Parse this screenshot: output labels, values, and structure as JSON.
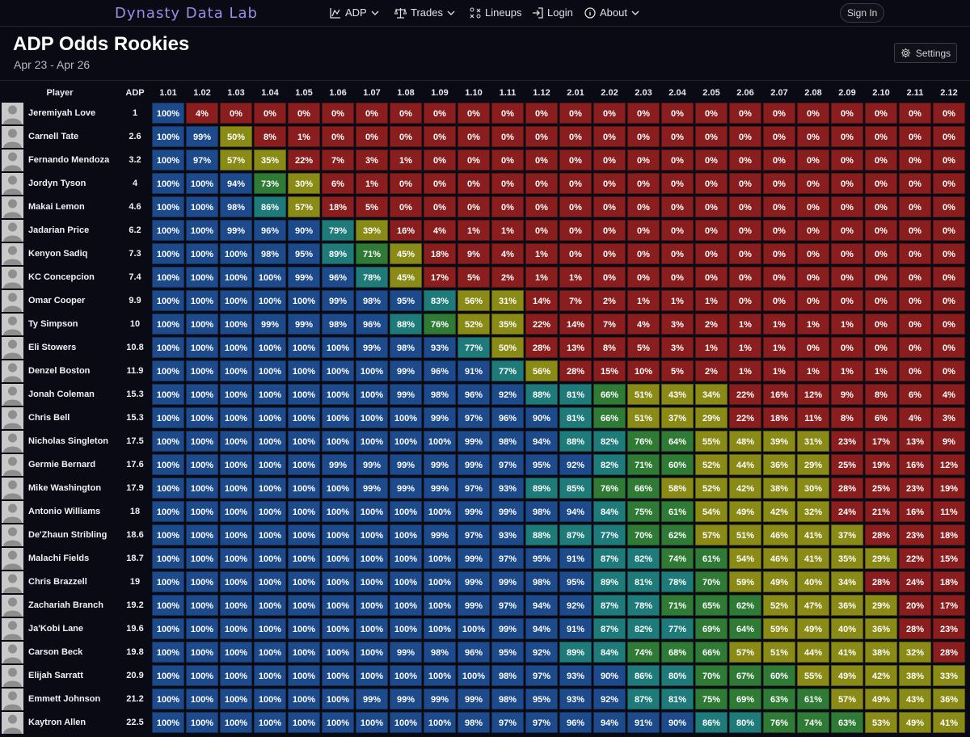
{
  "nav": {
    "brand": "Dynasty Data Lab",
    "items": [
      {
        "label": "ADP",
        "icon": "chart-icon",
        "dropdown": true
      },
      {
        "label": "Trades",
        "icon": "scale-icon",
        "dropdown": true
      },
      {
        "label": "Lineups",
        "icon": "lineup-icon",
        "dropdown": false
      },
      {
        "label": "Login",
        "icon": "login-icon",
        "dropdown": false
      },
      {
        "label": "About",
        "icon": "info-icon",
        "dropdown": true
      }
    ],
    "signin_label": "Sign In"
  },
  "page": {
    "title": "ADP Odds Rookies",
    "subtitle": "Apr 23 - Apr 26",
    "settings_label": "Settings"
  },
  "table": {
    "player_header": "Player",
    "adp_header": "ADP",
    "picks": [
      "1.01",
      "1.02",
      "1.03",
      "1.04",
      "1.05",
      "1.06",
      "1.07",
      "1.08",
      "1.09",
      "1.10",
      "1.11",
      "1.12",
      "2.01",
      "2.02",
      "2.03",
      "2.04",
      "2.05",
      "2.06",
      "2.07",
      "2.08",
      "2.09",
      "2.10",
      "2.11",
      "2.12"
    ],
    "rows": [
      {
        "name": "Jeremiyah Love",
        "adp": "1",
        "odds": [
          100,
          4,
          0,
          0,
          0,
          0,
          0,
          0,
          0,
          0,
          0,
          0,
          0,
          0,
          0,
          0,
          0,
          0,
          0,
          0,
          0,
          0,
          0,
          0
        ]
      },
      {
        "name": "Carnell Tate",
        "adp": "2.6",
        "odds": [
          100,
          99,
          50,
          8,
          1,
          0,
          0,
          0,
          0,
          0,
          0,
          0,
          0,
          0,
          0,
          0,
          0,
          0,
          0,
          0,
          0,
          0,
          0,
          0
        ]
      },
      {
        "name": "Fernando Mendoza",
        "adp": "3.2",
        "odds": [
          100,
          97,
          57,
          35,
          22,
          7,
          3,
          1,
          0,
          0,
          0,
          0,
          0,
          0,
          0,
          0,
          0,
          0,
          0,
          0,
          0,
          0,
          0,
          0
        ]
      },
      {
        "name": "Jordyn Tyson",
        "adp": "4",
        "odds": [
          100,
          100,
          94,
          73,
          30,
          6,
          1,
          0,
          0,
          0,
          0,
          0,
          0,
          0,
          0,
          0,
          0,
          0,
          0,
          0,
          0,
          0,
          0,
          0
        ]
      },
      {
        "name": "Makai Lemon",
        "adp": "4.6",
        "odds": [
          100,
          100,
          98,
          86,
          57,
          18,
          5,
          0,
          0,
          0,
          0,
          0,
          0,
          0,
          0,
          0,
          0,
          0,
          0,
          0,
          0,
          0,
          0,
          0
        ]
      },
      {
        "name": "Jadarian Price",
        "adp": "6.2",
        "odds": [
          100,
          100,
          99,
          96,
          90,
          79,
          39,
          16,
          4,
          1,
          1,
          0,
          0,
          0,
          0,
          0,
          0,
          0,
          0,
          0,
          0,
          0,
          0,
          0
        ]
      },
      {
        "name": "Kenyon Sadiq",
        "adp": "7.3",
        "odds": [
          100,
          100,
          100,
          98,
          95,
          89,
          71,
          45,
          18,
          9,
          4,
          1,
          0,
          0,
          0,
          0,
          0,
          0,
          0,
          0,
          0,
          0,
          0,
          0
        ]
      },
      {
        "name": "KC Concepcion",
        "adp": "7.4",
        "odds": [
          100,
          100,
          100,
          100,
          99,
          96,
          78,
          45,
          17,
          5,
          2,
          1,
          1,
          0,
          0,
          0,
          0,
          0,
          0,
          0,
          0,
          0,
          0,
          0
        ]
      },
      {
        "name": "Omar Cooper",
        "adp": "9.9",
        "odds": [
          100,
          100,
          100,
          100,
          100,
          99,
          98,
          95,
          83,
          56,
          31,
          14,
          7,
          2,
          1,
          1,
          1,
          0,
          0,
          0,
          0,
          0,
          0,
          0
        ]
      },
      {
        "name": "Ty Simpson",
        "adp": "10",
        "odds": [
          100,
          100,
          100,
          99,
          99,
          98,
          96,
          88,
          76,
          52,
          35,
          22,
          14,
          7,
          4,
          3,
          2,
          1,
          1,
          1,
          1,
          0,
          0,
          0
        ]
      },
      {
        "name": "Eli Stowers",
        "adp": "10.8",
        "odds": [
          100,
          100,
          100,
          100,
          100,
          100,
          99,
          98,
          93,
          77,
          50,
          28,
          13,
          8,
          5,
          3,
          1,
          1,
          1,
          0,
          0,
          0,
          0,
          0
        ]
      },
      {
        "name": "Denzel Boston",
        "adp": "11.9",
        "odds": [
          100,
          100,
          100,
          100,
          100,
          100,
          100,
          99,
          96,
          91,
          77,
          56,
          28,
          15,
          10,
          5,
          2,
          1,
          1,
          1,
          1,
          1,
          0,
          0
        ]
      },
      {
        "name": "Jonah Coleman",
        "adp": "15.3",
        "odds": [
          100,
          100,
          100,
          100,
          100,
          100,
          100,
          99,
          98,
          96,
          92,
          88,
          81,
          66,
          51,
          43,
          34,
          22,
          16,
          12,
          9,
          8,
          6,
          4
        ]
      },
      {
        "name": "Chris Bell",
        "adp": "15.3",
        "odds": [
          100,
          100,
          100,
          100,
          100,
          100,
          100,
          100,
          99,
          97,
          96,
          90,
          81,
          66,
          51,
          37,
          29,
          22,
          18,
          11,
          8,
          6,
          4,
          3
        ]
      },
      {
        "name": "Nicholas Singleton",
        "adp": "17.5",
        "odds": [
          100,
          100,
          100,
          100,
          100,
          100,
          100,
          100,
          100,
          99,
          98,
          94,
          88,
          82,
          76,
          64,
          55,
          48,
          39,
          31,
          23,
          17,
          13,
          9
        ]
      },
      {
        "name": "Germie Bernard",
        "adp": "17.6",
        "odds": [
          100,
          100,
          100,
          100,
          100,
          99,
          99,
          99,
          99,
          99,
          97,
          95,
          92,
          82,
          71,
          60,
          52,
          44,
          36,
          29,
          25,
          19,
          16,
          12
        ]
      },
      {
        "name": "Mike Washington",
        "adp": "17.9",
        "odds": [
          100,
          100,
          100,
          100,
          100,
          100,
          99,
          99,
          99,
          97,
          93,
          89,
          85,
          76,
          66,
          58,
          52,
          42,
          38,
          30,
          28,
          25,
          23,
          19
        ]
      },
      {
        "name": "Antonio Williams",
        "adp": "18",
        "odds": [
          100,
          100,
          100,
          100,
          100,
          100,
          100,
          100,
          100,
          99,
          99,
          98,
          94,
          84,
          75,
          61,
          54,
          49,
          42,
          32,
          24,
          21,
          16,
          11
        ]
      },
      {
        "name": "De'Zhaun Stribling",
        "adp": "18.6",
        "odds": [
          100,
          100,
          100,
          100,
          100,
          100,
          100,
          100,
          99,
          97,
          93,
          88,
          87,
          77,
          70,
          62,
          57,
          51,
          46,
          41,
          37,
          28,
          23,
          18
        ]
      },
      {
        "name": "Malachi Fields",
        "adp": "18.7",
        "odds": [
          100,
          100,
          100,
          100,
          100,
          100,
          100,
          100,
          100,
          99,
          97,
          95,
          91,
          87,
          82,
          74,
          61,
          54,
          46,
          41,
          35,
          29,
          22,
          15
        ]
      },
      {
        "name": "Chris Brazzell",
        "adp": "19",
        "odds": [
          100,
          100,
          100,
          100,
          100,
          100,
          100,
          100,
          100,
          99,
          99,
          98,
          95,
          89,
          81,
          78,
          70,
          59,
          49,
          40,
          34,
          28,
          24,
          18
        ]
      },
      {
        "name": "Zachariah Branch",
        "adp": "19.2",
        "odds": [
          100,
          100,
          100,
          100,
          100,
          100,
          100,
          100,
          100,
          99,
          97,
          94,
          92,
          87,
          78,
          71,
          65,
          62,
          52,
          47,
          36,
          29,
          20,
          17
        ]
      },
      {
        "name": "Ja'Kobi Lane",
        "adp": "19.6",
        "odds": [
          100,
          100,
          100,
          100,
          100,
          100,
          100,
          100,
          100,
          100,
          99,
          94,
          91,
          87,
          82,
          77,
          69,
          64,
          59,
          49,
          40,
          36,
          28,
          23
        ]
      },
      {
        "name": "Carson Beck",
        "adp": "19.8",
        "odds": [
          100,
          100,
          100,
          100,
          100,
          100,
          100,
          99,
          98,
          96,
          95,
          92,
          89,
          84,
          74,
          68,
          66,
          57,
          51,
          44,
          41,
          38,
          32,
          28
        ]
      },
      {
        "name": "Elijah Sarratt",
        "adp": "20.9",
        "odds": [
          100,
          100,
          100,
          100,
          100,
          100,
          100,
          100,
          100,
          100,
          98,
          97,
          93,
          90,
          86,
          80,
          70,
          67,
          60,
          55,
          49,
          42,
          38,
          33
        ]
      },
      {
        "name": "Emmett Johnson",
        "adp": "21.2",
        "odds": [
          100,
          100,
          100,
          100,
          100,
          100,
          99,
          99,
          99,
          99,
          98,
          95,
          93,
          92,
          87,
          81,
          75,
          69,
          63,
          61,
          57,
          49,
          43,
          36
        ]
      },
      {
        "name": "Kaytron Allen",
        "adp": "22.5",
        "odds": [
          100,
          100,
          100,
          100,
          100,
          100,
          100,
          100,
          100,
          98,
          97,
          97,
          96,
          94,
          91,
          90,
          86,
          80,
          76,
          74,
          63,
          53,
          49,
          41
        ]
      }
    ]
  },
  "colors": {
    "high": "#1d4a8a",
    "mid_high": "#1f7a7a",
    "mid": "#2f7a35",
    "mid_low": "#8a8a16",
    "low": "#8a1e1e"
  }
}
